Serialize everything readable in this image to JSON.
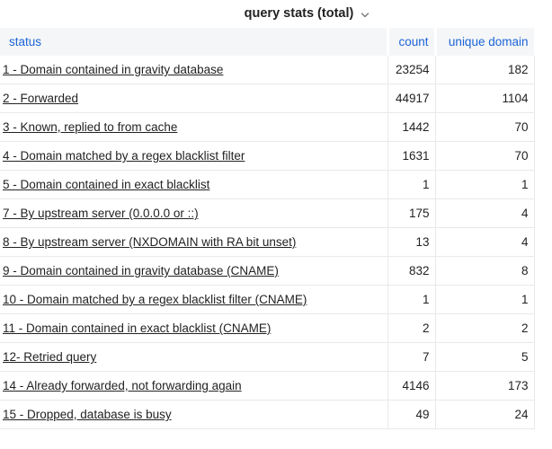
{
  "header": {
    "title": "query stats (total)",
    "chevron_icon": "chevron-down"
  },
  "table": {
    "columns": [
      "status",
      "count",
      "unique domain"
    ],
    "rows": [
      {
        "status": "1 - Domain contained in gravity database",
        "count": "23254",
        "unique_domain": "182"
      },
      {
        "status": "2 - Forwarded",
        "count": "44917",
        "unique_domain": "1104"
      },
      {
        "status": "3 - Known, replied to from cache",
        "count": "1442",
        "unique_domain": "70"
      },
      {
        "status": "4 - Domain matched by a regex blacklist filter",
        "count": "1631",
        "unique_domain": "70"
      },
      {
        "status": "5 - Domain contained in exact blacklist",
        "count": "1",
        "unique_domain": "1"
      },
      {
        "status": "7 - By upstream server (0.0.0.0 or ::)",
        "count": "175",
        "unique_domain": "4"
      },
      {
        "status": "8 - By upstream server (NXDOMAIN with RA bit unset)",
        "count": "13",
        "unique_domain": "4"
      },
      {
        "status": "9 - Domain contained in gravity database (CNAME)",
        "count": "832",
        "unique_domain": "8"
      },
      {
        "status": "10 - Domain matched by a regex blacklist filter (CNAME)",
        "count": "1",
        "unique_domain": "1"
      },
      {
        "status": "11 - Domain contained in exact blacklist (CNAME)",
        "count": "2",
        "unique_domain": "2"
      },
      {
        "status": "12- Retried query",
        "count": "7",
        "unique_domain": "5"
      },
      {
        "status": "14 - Already forwarded, not forwarding again",
        "count": "4146",
        "unique_domain": "173"
      },
      {
        "status": "15 - Dropped, database is busy",
        "count": "49",
        "unique_domain": "24"
      }
    ]
  },
  "colors": {
    "header_bg": "#f5f6f7",
    "header_text": "#1a64d6",
    "body_text": "#222222",
    "border": "#e9e9e9",
    "chevron": "#777777",
    "page_bg": "#ffffff"
  }
}
